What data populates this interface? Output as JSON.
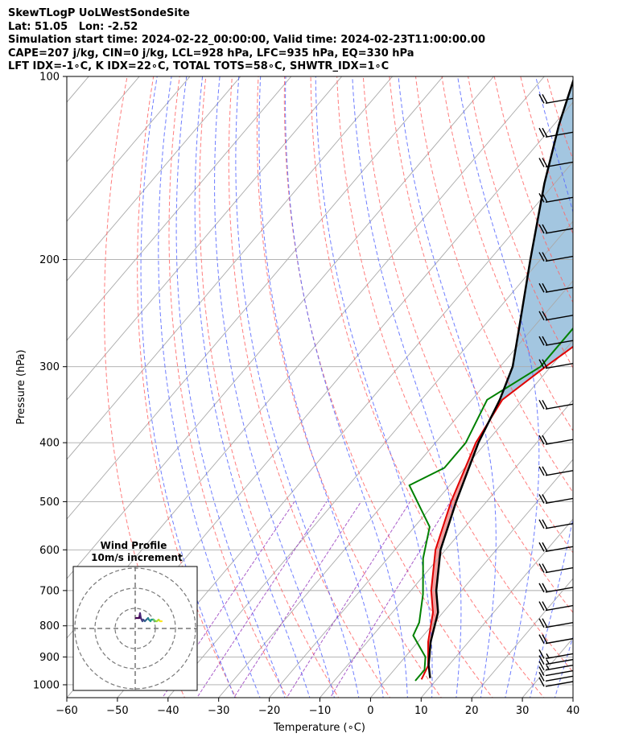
{
  "header": {
    "line1": "SkewTLogP UoLWestSondeSite",
    "line2": "Lat: 51.05   Lon: -2.52",
    "line3": "Simulation start time: 2024-02-22_00:00:00, Valid time: 2024-02-23T11:00:00.00",
    "line4": "CAPE=207 j/kg, CIN=0 j/kg, LCL=928 hPa, LFC=935 hPa, EQ=330 hPa",
    "line5": "LFT IDX=-1∘C, K IDX=22∘C, TOTAL TOTS=58∘C, SHWTR_IDX=1∘C"
  },
  "chart_data": {
    "type": "line",
    "subtype": "skew-t log-p",
    "xlabel": "Temperature (∘C)",
    "ylabel": "Pressure (hPa)",
    "xlim": [
      -60,
      40
    ],
    "ylim": [
      1050,
      100
    ],
    "y_scale": "log",
    "x_ticks": [
      "−60",
      "−50",
      "−40",
      "−30",
      "−20",
      "−10",
      "0",
      "10",
      "20",
      "30",
      "40"
    ],
    "y_ticks": [
      "1000",
      "900",
      "800",
      "700",
      "600",
      "500",
      "400",
      "300",
      "200",
      "100"
    ],
    "grid": true,
    "colors": {
      "temperature": "#e00000",
      "dewpoint": "#008000",
      "parcel": "#000000",
      "cape_fill": "#a3c6e0",
      "cin_fill": "#f0a0a0",
      "dry_adiabat": "#ff6666",
      "moist_adiabat": "#5566ff",
      "mixing_ratio": "#9a40c0",
      "isotherm": "#aaaaaa"
    },
    "series": [
      {
        "key": "temperature",
        "points": [
          [
            7,
            980
          ],
          [
            6,
            930
          ],
          [
            2,
            850
          ],
          [
            -2,
            760
          ],
          [
            -6,
            700
          ],
          [
            -12,
            600
          ],
          [
            -17,
            500
          ],
          [
            -22,
            400
          ],
          [
            -24,
            340
          ],
          [
            -21,
            300
          ],
          [
            -16,
            250
          ],
          [
            -11,
            200
          ],
          [
            -6,
            160
          ],
          [
            -2,
            130
          ],
          [
            1,
            110
          ],
          [
            2,
            100
          ]
        ]
      },
      {
        "key": "dewpoint",
        "points": [
          [
            6,
            985
          ],
          [
            6,
            945
          ],
          [
            4,
            900
          ],
          [
            -2,
            830
          ],
          [
            -3,
            790
          ],
          [
            -7,
            710
          ],
          [
            -13,
            620
          ],
          [
            -17,
            550
          ],
          [
            -28,
            470
          ],
          [
            -24,
            440
          ],
          [
            -24,
            400
          ],
          [
            -27,
            340
          ],
          [
            -22,
            300
          ],
          [
            -22,
            250
          ],
          [
            -21,
            210
          ],
          [
            -21,
            185
          ],
          [
            -18,
            150
          ],
          [
            -13,
            120
          ],
          [
            -10,
            100
          ]
        ]
      },
      {
        "key": "parcel",
        "points": [
          [
            8.5,
            975
          ],
          [
            6,
            928
          ],
          [
            2.5,
            850
          ],
          [
            -1,
            760
          ],
          [
            -5,
            700
          ],
          [
            -11,
            600
          ],
          [
            -16,
            500
          ],
          [
            -21.5,
            400
          ],
          [
            -24.5,
            340
          ],
          [
            -27.5,
            300
          ],
          [
            -34,
            250
          ],
          [
            -42,
            200
          ],
          [
            -52,
            150
          ],
          [
            -59,
            120
          ],
          [
            -64,
            100
          ]
        ]
      }
    ],
    "wind_barbs": {
      "pressures": [
        1000,
        980,
        960,
        940,
        920,
        900,
        850,
        800,
        750,
        700,
        650,
        600,
        550,
        500,
        450,
        400,
        350,
        300,
        275,
        250,
        225,
        200,
        180,
        160,
        140,
        125,
        110
      ],
      "speed_kt": [
        10,
        10,
        10,
        15,
        15,
        15,
        20,
        20,
        20,
        20,
        20,
        20,
        20,
        20,
        20,
        20,
        20,
        20,
        20,
        20,
        20,
        20,
        20,
        20,
        20,
        20,
        20
      ]
    },
    "inset": {
      "title": "Wind Profile",
      "subtitle": "10m/s increment"
    }
  }
}
